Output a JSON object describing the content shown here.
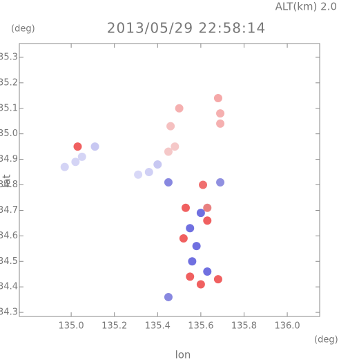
{
  "chart_data": {
    "type": "scatter",
    "title": "2013/05/29 22:58:14",
    "subtitle": "ALT(km) 2.0",
    "y_unit": "(deg)",
    "x_unit": "(deg)",
    "xlabel": "lon",
    "ylabel": "lat",
    "xlim": [
      134.76,
      136.15
    ],
    "ylim": [
      34.284,
      35.354
    ],
    "xticks": [
      {
        "value": 135.0,
        "label": "135.0"
      },
      {
        "value": 135.2,
        "label": "135.2"
      },
      {
        "value": 135.4,
        "label": "135.4"
      },
      {
        "value": 135.6,
        "label": "135.6"
      },
      {
        "value": 135.8,
        "label": "135.8"
      },
      {
        "value": 136.0,
        "label": "136.0"
      }
    ],
    "yticks": [
      {
        "value": 34.3,
        "label": "34.3"
      },
      34.4,
      34.5,
      34.6,
      34.7,
      34.8,
      34.9,
      {
        "value": 35.0,
        "label": "35.0"
      },
      35.1,
      35.2,
      35.3
    ],
    "x": [
      134.97,
      135.02,
      135.05,
      135.03,
      135.11,
      135.36,
      135.31,
      135.4,
      135.45,
      135.45,
      135.48,
      135.5,
      135.46,
      135.68,
      135.69,
      135.69,
      135.53,
      135.6,
      135.63,
      135.55,
      135.52,
      135.58,
      135.63,
      135.56,
      135.55,
      135.63,
      135.6,
      135.68,
      135.45,
      135.61,
      135.69
    ],
    "y": [
      34.87,
      34.89,
      34.91,
      34.95,
      34.95,
      34.85,
      34.84,
      34.88,
      34.81,
      34.93,
      34.95,
      35.1,
      35.03,
      35.14,
      35.08,
      35.04,
      34.71,
      34.69,
      34.66,
      34.63,
      34.59,
      34.56,
      34.71,
      34.5,
      34.44,
      34.46,
      34.41,
      34.43,
      34.36,
      34.8,
      34.81
    ],
    "colors": [
      "#d4d4f5",
      "#d4d4f5",
      "#d4d4f5",
      "#f06060",
      "#c8c8f2",
      "#d0d0f5",
      "#d8d8f7",
      "#c8c8f2",
      "#8888e0",
      "#f5c8c8",
      "#f5c8c8",
      "#f5b0b0",
      "#f5c0c0",
      "#f5a8a8",
      "#f5b0b0",
      "#f5b0b0",
      "#f06060",
      "#7070e0",
      "#f06060",
      "#7070e0",
      "#f06060",
      "#7070e0",
      "#e88080",
      "#7070e0",
      "#f06060",
      "#7070e0",
      "#f06060",
      "#f06060",
      "#8888e0",
      "#f07070",
      "#9090e0"
    ]
  }
}
